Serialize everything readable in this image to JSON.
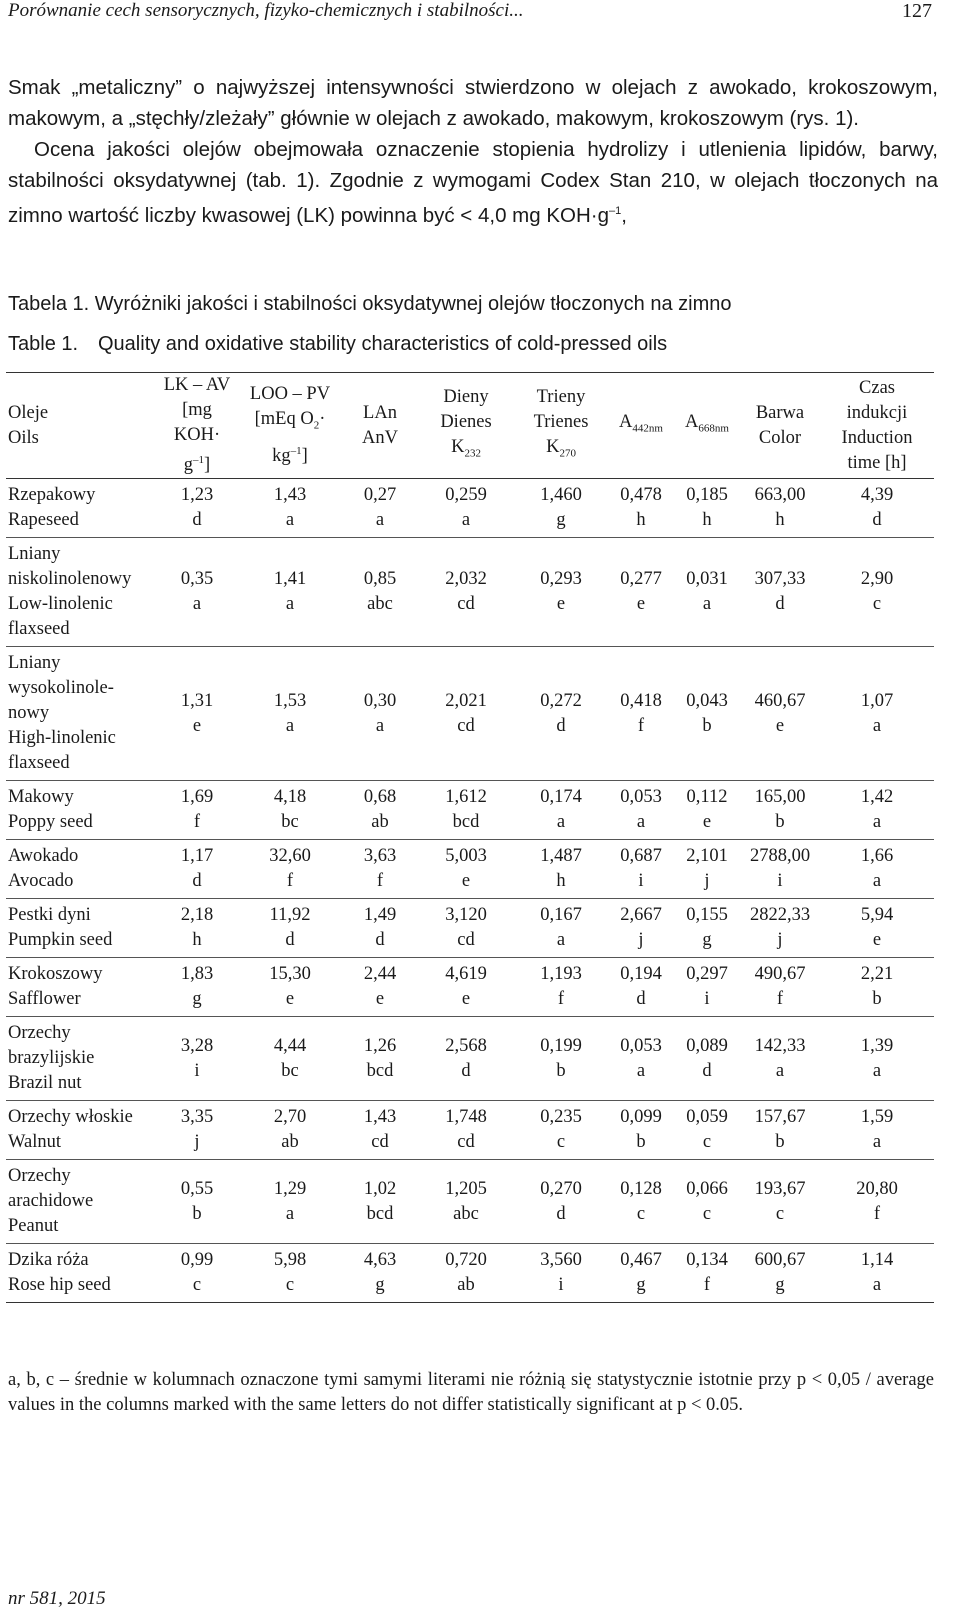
{
  "header": {
    "running_title": "Porównanie cech sensorycznych, fizyko-chemicznych i stabilności...",
    "page_number": "127"
  },
  "body": {
    "para1": "Smak „metaliczny” o najwyższej intensywności stwierdzono w olejach z awokado, krokoszowym, makowym, a „stęchły/zleżały” głównie w olejach z awokado, makowym, krokoszowym (rys. 1).",
    "para2_pre": "Ocena jakości olejów obejmowała oznaczenie stopienia hydrolizy i utlenienia lipidów, barwy, stabilności oksydatywnej (tab. 1). Zgodnie z wymogami Codex Stan 210, w olejach tłoczonych na zimno wartość liczby kwasowej (LK) powinna być < 4,0 mg KOH·g",
    "para2_sup": "–1",
    "para2_post": ","
  },
  "captions": {
    "pl": "Tabela 1. Wyróżniki jakości i stabilności oksydatywnej olejów tłoczonych na zimno",
    "en_label": "Table 1.",
    "en_text": "Quality and oxidative stability characteristics of cold-pressed oils"
  },
  "table": {
    "headers": {
      "oils_pl": "Oleje",
      "oils_en": "Oils",
      "lk_1": "LK – AV",
      "lk_2": "[mg KOH·",
      "lk_3": "g",
      "lk_3_sup": "–1",
      "lk_3_end": "]",
      "loo_1": "LOO – PV",
      "loo_2a": "[mEq O",
      "loo_2_sub": "2",
      "loo_2b": "·",
      "loo_3": "kg",
      "loo_3_sup": "–1",
      "loo_3_end": "]",
      "lan_1": "LAn",
      "lan_2": "AnV",
      "dien_1": "Dieny",
      "dien_2": "Dienes",
      "dien_3": "K",
      "dien_3_sub": "232",
      "trien_1": "Trieny",
      "trien_2": "Trienes",
      "trien_3": "K",
      "trien_3_sub": "270",
      "a442": "A",
      "a442_sub": "442nm",
      "a668": "A",
      "a668_sub": "668nm",
      "color_1": "Barwa",
      "color_2": "Color",
      "time_1": "Czas",
      "time_2": "indukcji",
      "time_3": "Induction",
      "time_4": "time [h]"
    },
    "rows": [
      {
        "name": [
          "Rzepakowy",
          "Rapeseed"
        ],
        "cells": [
          [
            "1,23",
            "d"
          ],
          [
            "1,43",
            "a"
          ],
          [
            "0,27",
            "a"
          ],
          [
            "0,259",
            "a"
          ],
          [
            "1,460",
            "g"
          ],
          [
            "0,478",
            "h"
          ],
          [
            "0,185",
            "h"
          ],
          [
            "663,00",
            "h"
          ],
          [
            "4,39",
            "d"
          ]
        ]
      },
      {
        "name": [
          "Lniany",
          "niskolinolenowy",
          "Low-linolenic",
          "flaxseed"
        ],
        "cells": [
          [
            "0,35",
            "a"
          ],
          [
            "1,41",
            "a"
          ],
          [
            "0,85",
            "abc"
          ],
          [
            "2,032",
            "cd"
          ],
          [
            "0,293",
            "e"
          ],
          [
            "0,277",
            "e"
          ],
          [
            "0,031",
            "a"
          ],
          [
            "307,33",
            "d"
          ],
          [
            "2,90",
            "c"
          ]
        ]
      },
      {
        "name": [
          "Lniany",
          "wysokolinole-",
          "nowy",
          "High-linolenic",
          "flaxseed"
        ],
        "cells": [
          [
            "1,31",
            "e"
          ],
          [
            "1,53",
            "a"
          ],
          [
            "0,30",
            "a"
          ],
          [
            "2,021",
            "cd"
          ],
          [
            "0,272",
            "d"
          ],
          [
            "0,418",
            "f"
          ],
          [
            "0,043",
            "b"
          ],
          [
            "460,67",
            "e"
          ],
          [
            "1,07",
            "a"
          ]
        ]
      },
      {
        "name": [
          "Makowy",
          "Poppy seed"
        ],
        "cells": [
          [
            "1,69",
            "f"
          ],
          [
            "4,18",
            "bc"
          ],
          [
            "0,68",
            "ab"
          ],
          [
            "1,612",
            "bcd"
          ],
          [
            "0,174",
            "a"
          ],
          [
            "0,053",
            "a"
          ],
          [
            "0,112",
            "e"
          ],
          [
            "165,00",
            "b"
          ],
          [
            "1,42",
            "a"
          ]
        ]
      },
      {
        "name": [
          "Awokado",
          "Avocado"
        ],
        "cells": [
          [
            "1,17",
            "d"
          ],
          [
            "32,60",
            "f"
          ],
          [
            "3,63",
            "f"
          ],
          [
            "5,003",
            "e"
          ],
          [
            "1,487",
            "h"
          ],
          [
            "0,687",
            "i"
          ],
          [
            "2,101",
            "j"
          ],
          [
            "2788,00",
            "i"
          ],
          [
            "1,66",
            "a"
          ]
        ]
      },
      {
        "name": [
          "Pestki dyni",
          "Pumpkin seed"
        ],
        "cells": [
          [
            "2,18",
            "h"
          ],
          [
            "11,92",
            "d"
          ],
          [
            "1,49",
            "d"
          ],
          [
            "3,120",
            "cd"
          ],
          [
            "0,167",
            "a"
          ],
          [
            "2,667",
            "j"
          ],
          [
            "0,155",
            "g"
          ],
          [
            "2822,33",
            "j"
          ],
          [
            "5,94",
            "e"
          ]
        ]
      },
      {
        "name": [
          "Krokoszowy",
          "Safflower"
        ],
        "cells": [
          [
            "1,83",
            "g"
          ],
          [
            "15,30",
            "e"
          ],
          [
            "2,44",
            "e"
          ],
          [
            "4,619",
            "e"
          ],
          [
            "1,193",
            "f"
          ],
          [
            "0,194",
            "d"
          ],
          [
            "0,297",
            "i"
          ],
          [
            "490,67",
            "f"
          ],
          [
            "2,21",
            "b"
          ]
        ]
      },
      {
        "name": [
          "Orzechy",
          "brazylijskie",
          "Brazil nut"
        ],
        "cells": [
          [
            "3,28",
            "i"
          ],
          [
            "4,44",
            "bc"
          ],
          [
            "1,26",
            "bcd"
          ],
          [
            "2,568",
            "d"
          ],
          [
            "0,199",
            "b"
          ],
          [
            "0,053",
            "a"
          ],
          [
            "0,089",
            "d"
          ],
          [
            "142,33",
            "a"
          ],
          [
            "1,39",
            "a"
          ]
        ]
      },
      {
        "name": [
          "Orzechy włoskie",
          "Walnut"
        ],
        "cells": [
          [
            "3,35",
            "j"
          ],
          [
            "2,70",
            "ab"
          ],
          [
            "1,43",
            "cd"
          ],
          [
            "1,748",
            "cd"
          ],
          [
            "0,235",
            "c"
          ],
          [
            "0,099",
            "b"
          ],
          [
            "0,059",
            "c"
          ],
          [
            "157,67",
            "b"
          ],
          [
            "1,59",
            "a"
          ]
        ]
      },
      {
        "name": [
          "Orzechy",
          "arachidowe",
          "Peanut"
        ],
        "cells": [
          [
            "0,55",
            "b"
          ],
          [
            "1,29",
            "a"
          ],
          [
            "1,02",
            "bcd"
          ],
          [
            "1,205",
            "abc"
          ],
          [
            "0,270",
            "d"
          ],
          [
            "0,128",
            "c"
          ],
          [
            "0,066",
            "c"
          ],
          [
            "193,67",
            "c"
          ],
          [
            "20,80",
            "f"
          ]
        ]
      },
      {
        "name": [
          "Dzika róża",
          "Rose hip seed"
        ],
        "cells": [
          [
            "0,99",
            "c"
          ],
          [
            "5,98",
            "c"
          ],
          [
            "4,63",
            "g"
          ],
          [
            "0,720",
            "ab"
          ],
          [
            "3,560",
            "i"
          ],
          [
            "0,467",
            "g"
          ],
          [
            "0,134",
            "f"
          ],
          [
            "600,67",
            "g"
          ],
          [
            "1,14",
            "a"
          ]
        ]
      }
    ]
  },
  "footnote": "a, b, c – średnie w kolumnach oznaczone tymi samymi literami nie różnią się statystycznie istotnie przy p < 0,05 / average values in the columns marked with the same letters do not differ statistically significant at p < 0.05.",
  "footer": "nr 581, 2015"
}
